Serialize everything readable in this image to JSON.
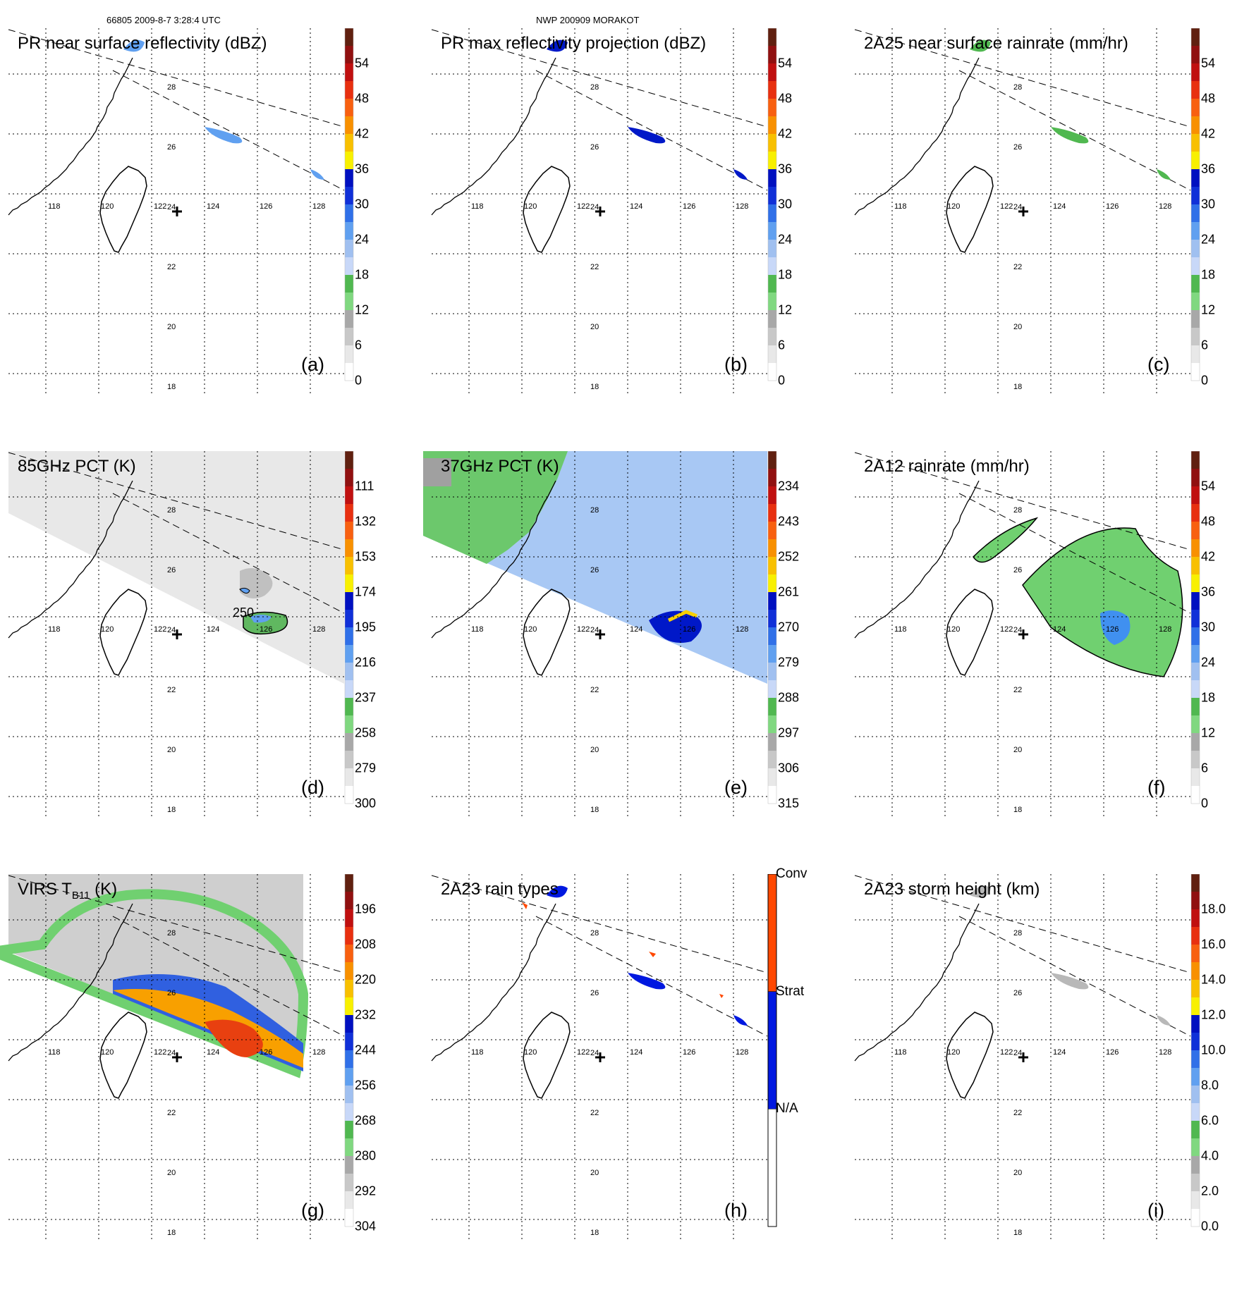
{
  "header": {
    "left": "66805 2009-8-7 3:28:4 UTC",
    "center": "NWP 200909 MORAKOT"
  },
  "map_axes": {
    "lon_labels": [
      "118",
      "120",
      "122",
      "124",
      "126",
      "128"
    ],
    "lat_labels": [
      "28",
      "26",
      "24",
      "22",
      "20",
      "18"
    ]
  },
  "panels": [
    {
      "id": "a",
      "title": "PR near surface reflectivity (dBZ)",
      "label": "(a)",
      "ticks": [
        "54",
        "48",
        "42",
        "36",
        "30",
        "24",
        "18",
        "12",
        "6",
        "0"
      ]
    },
    {
      "id": "b",
      "title": "PR max reflectivity projection (dBZ)",
      "label": "(b)",
      "ticks": [
        "54",
        "48",
        "42",
        "36",
        "30",
        "24",
        "18",
        "12",
        "6",
        "0"
      ]
    },
    {
      "id": "c",
      "title": "2A25 near surface rainrate (mm/hr)",
      "label": "(c)",
      "ticks": [
        "54",
        "48",
        "42",
        "36",
        "30",
        "24",
        "18",
        "12",
        "6",
        "0"
      ]
    },
    {
      "id": "d",
      "title": "85GHz PCT (K)",
      "label": "(d)",
      "ticks": [
        "111",
        "132",
        "153",
        "174",
        "195",
        "216",
        "237",
        "258",
        "279",
        "300"
      ],
      "contour_label": "250"
    },
    {
      "id": "e",
      "title": "37GHz PCT (K)",
      "label": "(e)",
      "ticks": [
        "234",
        "243",
        "252",
        "261",
        "270",
        "279",
        "288",
        "297",
        "306",
        "315"
      ]
    },
    {
      "id": "f",
      "title": "2A12 rainrate (mm/hr)",
      "label": "(f)",
      "ticks": [
        "54",
        "48",
        "42",
        "36",
        "30",
        "24",
        "18",
        "12",
        "6",
        "0"
      ]
    },
    {
      "id": "g",
      "title_main": "VIRS T",
      "title_sub": "B11",
      "title_end": " (K)",
      "label": "(g)",
      "ticks": [
        "196",
        "208",
        "220",
        "232",
        "244",
        "256",
        "268",
        "280",
        "292",
        "304"
      ]
    },
    {
      "id": "h",
      "title": "2A23 rain types",
      "label": "(h)",
      "categories": [
        "Conv",
        "Strat",
        "N/A"
      ]
    },
    {
      "id": "i",
      "title": "2A23 storm height (km)",
      "label": "(i)",
      "ticks": [
        "18.0",
        "16.0",
        "14.0",
        "12.0",
        "10.0",
        "8.0",
        "6.0",
        "4.0",
        "2.0",
        "0.0"
      ]
    }
  ],
  "colors": {
    "scale": [
      "#ffffff",
      "#e8e8e8",
      "#c8c8c8",
      "#a8a8a8",
      "#80d880",
      "#50b850",
      "#c8d8f8",
      "#a0c0f0",
      "#60a0f0",
      "#3070e8",
      "#1030d8",
      "#0010c0",
      "#f8f000",
      "#f8c000",
      "#f89000",
      "#f86010",
      "#e83010",
      "#c01010",
      "#901010",
      "#602010"
    ],
    "conv": "#ff4800",
    "strat": "#0018e0",
    "na": "#ffffff"
  }
}
